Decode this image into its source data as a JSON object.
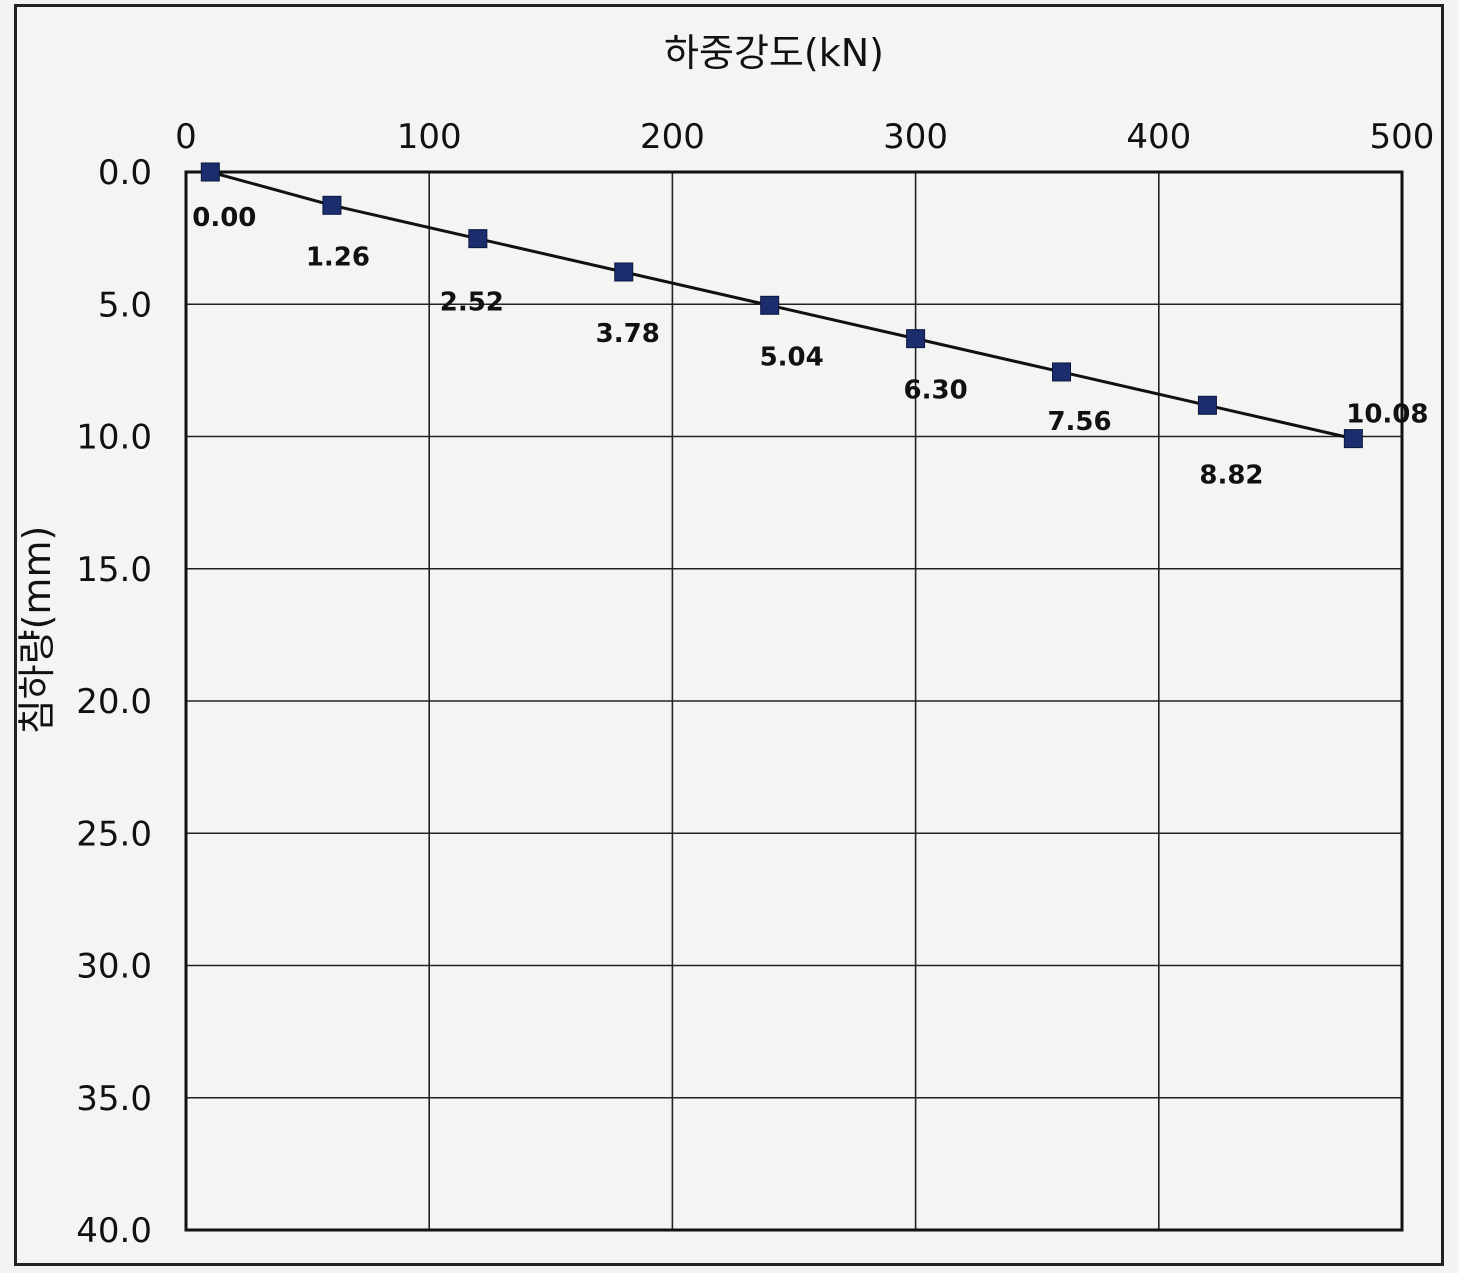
{
  "chart_data": {
    "type": "line",
    "title": "",
    "xlabel": "하중강도(kN)",
    "ylabel": "침하량(mm)",
    "xlim": [
      0,
      500
    ],
    "ylim": [
      0,
      40
    ],
    "x_ticks": [
      "0",
      "100",
      "200",
      "300",
      "400",
      "500"
    ],
    "y_ticks": [
      "0.0",
      "5.0",
      "10.0",
      "15.0",
      "20.0",
      "25.0",
      "30.0",
      "35.0",
      "40.0"
    ],
    "x_axis_position": "top",
    "y_axis_inverted": true,
    "grid": true,
    "series": [
      {
        "x": [
          10,
          60,
          120,
          180,
          240,
          300,
          360,
          420,
          480
        ],
        "y": [
          0.0,
          1.26,
          2.52,
          3.78,
          5.04,
          6.3,
          7.56,
          8.82,
          10.08
        ],
        "labels": [
          "0.00",
          "1.26",
          "2.52",
          "3.78",
          "5.04",
          "6.30",
          "7.56",
          "8.82",
          "10.08"
        ],
        "marker": "square",
        "marker_color": "#1c2d6e",
        "line_color": "#111111"
      }
    ]
  }
}
